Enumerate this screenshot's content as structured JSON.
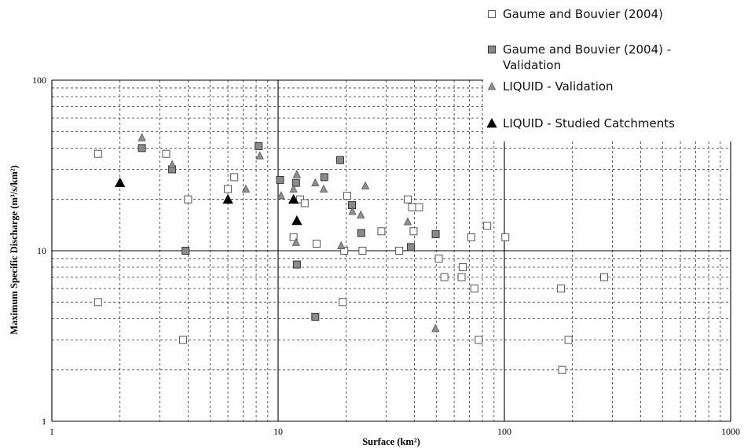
{
  "chart_data": {
    "type": "scatter",
    "xlabel": "Surface (km²)",
    "ylabel": "Maximum Specific Discharge (m³/s/km²)",
    "x_scale": "log",
    "y_scale": "log",
    "xlim": [
      1,
      1000
    ],
    "ylim": [
      1,
      100
    ],
    "x_ticks": [
      "1",
      "10",
      "100",
      "1000"
    ],
    "y_ticks": [
      "1",
      "10",
      "100"
    ],
    "grid": "dashed minor, solid major",
    "legend_position": "top-right",
    "series": [
      {
        "name": "Gaume and Bouvier (2004)",
        "marker": "open-square",
        "color": "#ffffff",
        "stroke": "#555555",
        "points": [
          [
            1.6,
            37
          ],
          [
            1.6,
            5
          ],
          [
            3.2,
            37
          ],
          [
            3.8,
            3
          ],
          [
            4.0,
            20
          ],
          [
            6.0,
            23
          ],
          [
            6.4,
            27
          ],
          [
            11.7,
            12
          ],
          [
            12.5,
            20
          ],
          [
            13.1,
            19
          ],
          [
            14.8,
            11
          ],
          [
            19.3,
            5
          ],
          [
            19.6,
            10
          ],
          [
            20.2,
            21
          ],
          [
            23.6,
            10
          ],
          [
            28.6,
            13
          ],
          [
            34.3,
            10
          ],
          [
            37.4,
            20
          ],
          [
            39.1,
            18
          ],
          [
            39.7,
            13
          ],
          [
            42.0,
            18
          ],
          [
            51.3,
            9
          ],
          [
            54.3,
            7
          ],
          [
            64.7,
            7
          ],
          [
            65.5,
            8
          ],
          [
            71.4,
            12
          ],
          [
            73.7,
            6
          ],
          [
            77.0,
            3
          ],
          [
            84.0,
            14
          ],
          [
            101.0,
            12
          ],
          [
            178.0,
            6
          ],
          [
            180.0,
            2
          ],
          [
            192.0,
            3
          ],
          [
            276.0,
            7
          ]
        ]
      },
      {
        "name": "Gaume and Bouvier (2004) - Validation",
        "marker": "filled-square",
        "color": "#8a8a8a",
        "stroke": "#333333",
        "points": [
          [
            2.5,
            40
          ],
          [
            3.4,
            30
          ],
          [
            3.9,
            10
          ],
          [
            8.2,
            41
          ],
          [
            10.2,
            26
          ],
          [
            12.0,
            25
          ],
          [
            12.1,
            8.3
          ],
          [
            14.6,
            4.1
          ],
          [
            16.0,
            27
          ],
          [
            18.8,
            34
          ],
          [
            21.2,
            18.5
          ],
          [
            23.3,
            12.7
          ],
          [
            38.6,
            10.5
          ],
          [
            49.7,
            12.5
          ]
        ]
      },
      {
        "name": "LIQUID - Validation",
        "marker": "small-triangle",
        "color": "#909090",
        "stroke": "#555555",
        "points": [
          [
            2.5,
            46
          ],
          [
            3.4,
            32
          ],
          [
            7.2,
            23
          ],
          [
            8.3,
            36
          ],
          [
            10.3,
            21
          ],
          [
            11.7,
            23
          ],
          [
            12.1,
            28
          ],
          [
            12.0,
            11.2
          ],
          [
            14.6,
            25
          ],
          [
            15.9,
            23
          ],
          [
            19.0,
            10.7
          ],
          [
            21.3,
            17
          ],
          [
            23.2,
            16.2
          ],
          [
            24.3,
            24
          ],
          [
            37.4,
            14.8
          ],
          [
            49.6,
            3.5
          ]
        ]
      },
      {
        "name": "LIQUID - Studied Catchments",
        "marker": "filled-triangle",
        "color": "#000000",
        "stroke": "#000000",
        "points": [
          [
            2.0,
            25
          ],
          [
            6.0,
            20
          ],
          [
            11.7,
            20
          ],
          [
            12.1,
            15
          ]
        ]
      }
    ]
  }
}
